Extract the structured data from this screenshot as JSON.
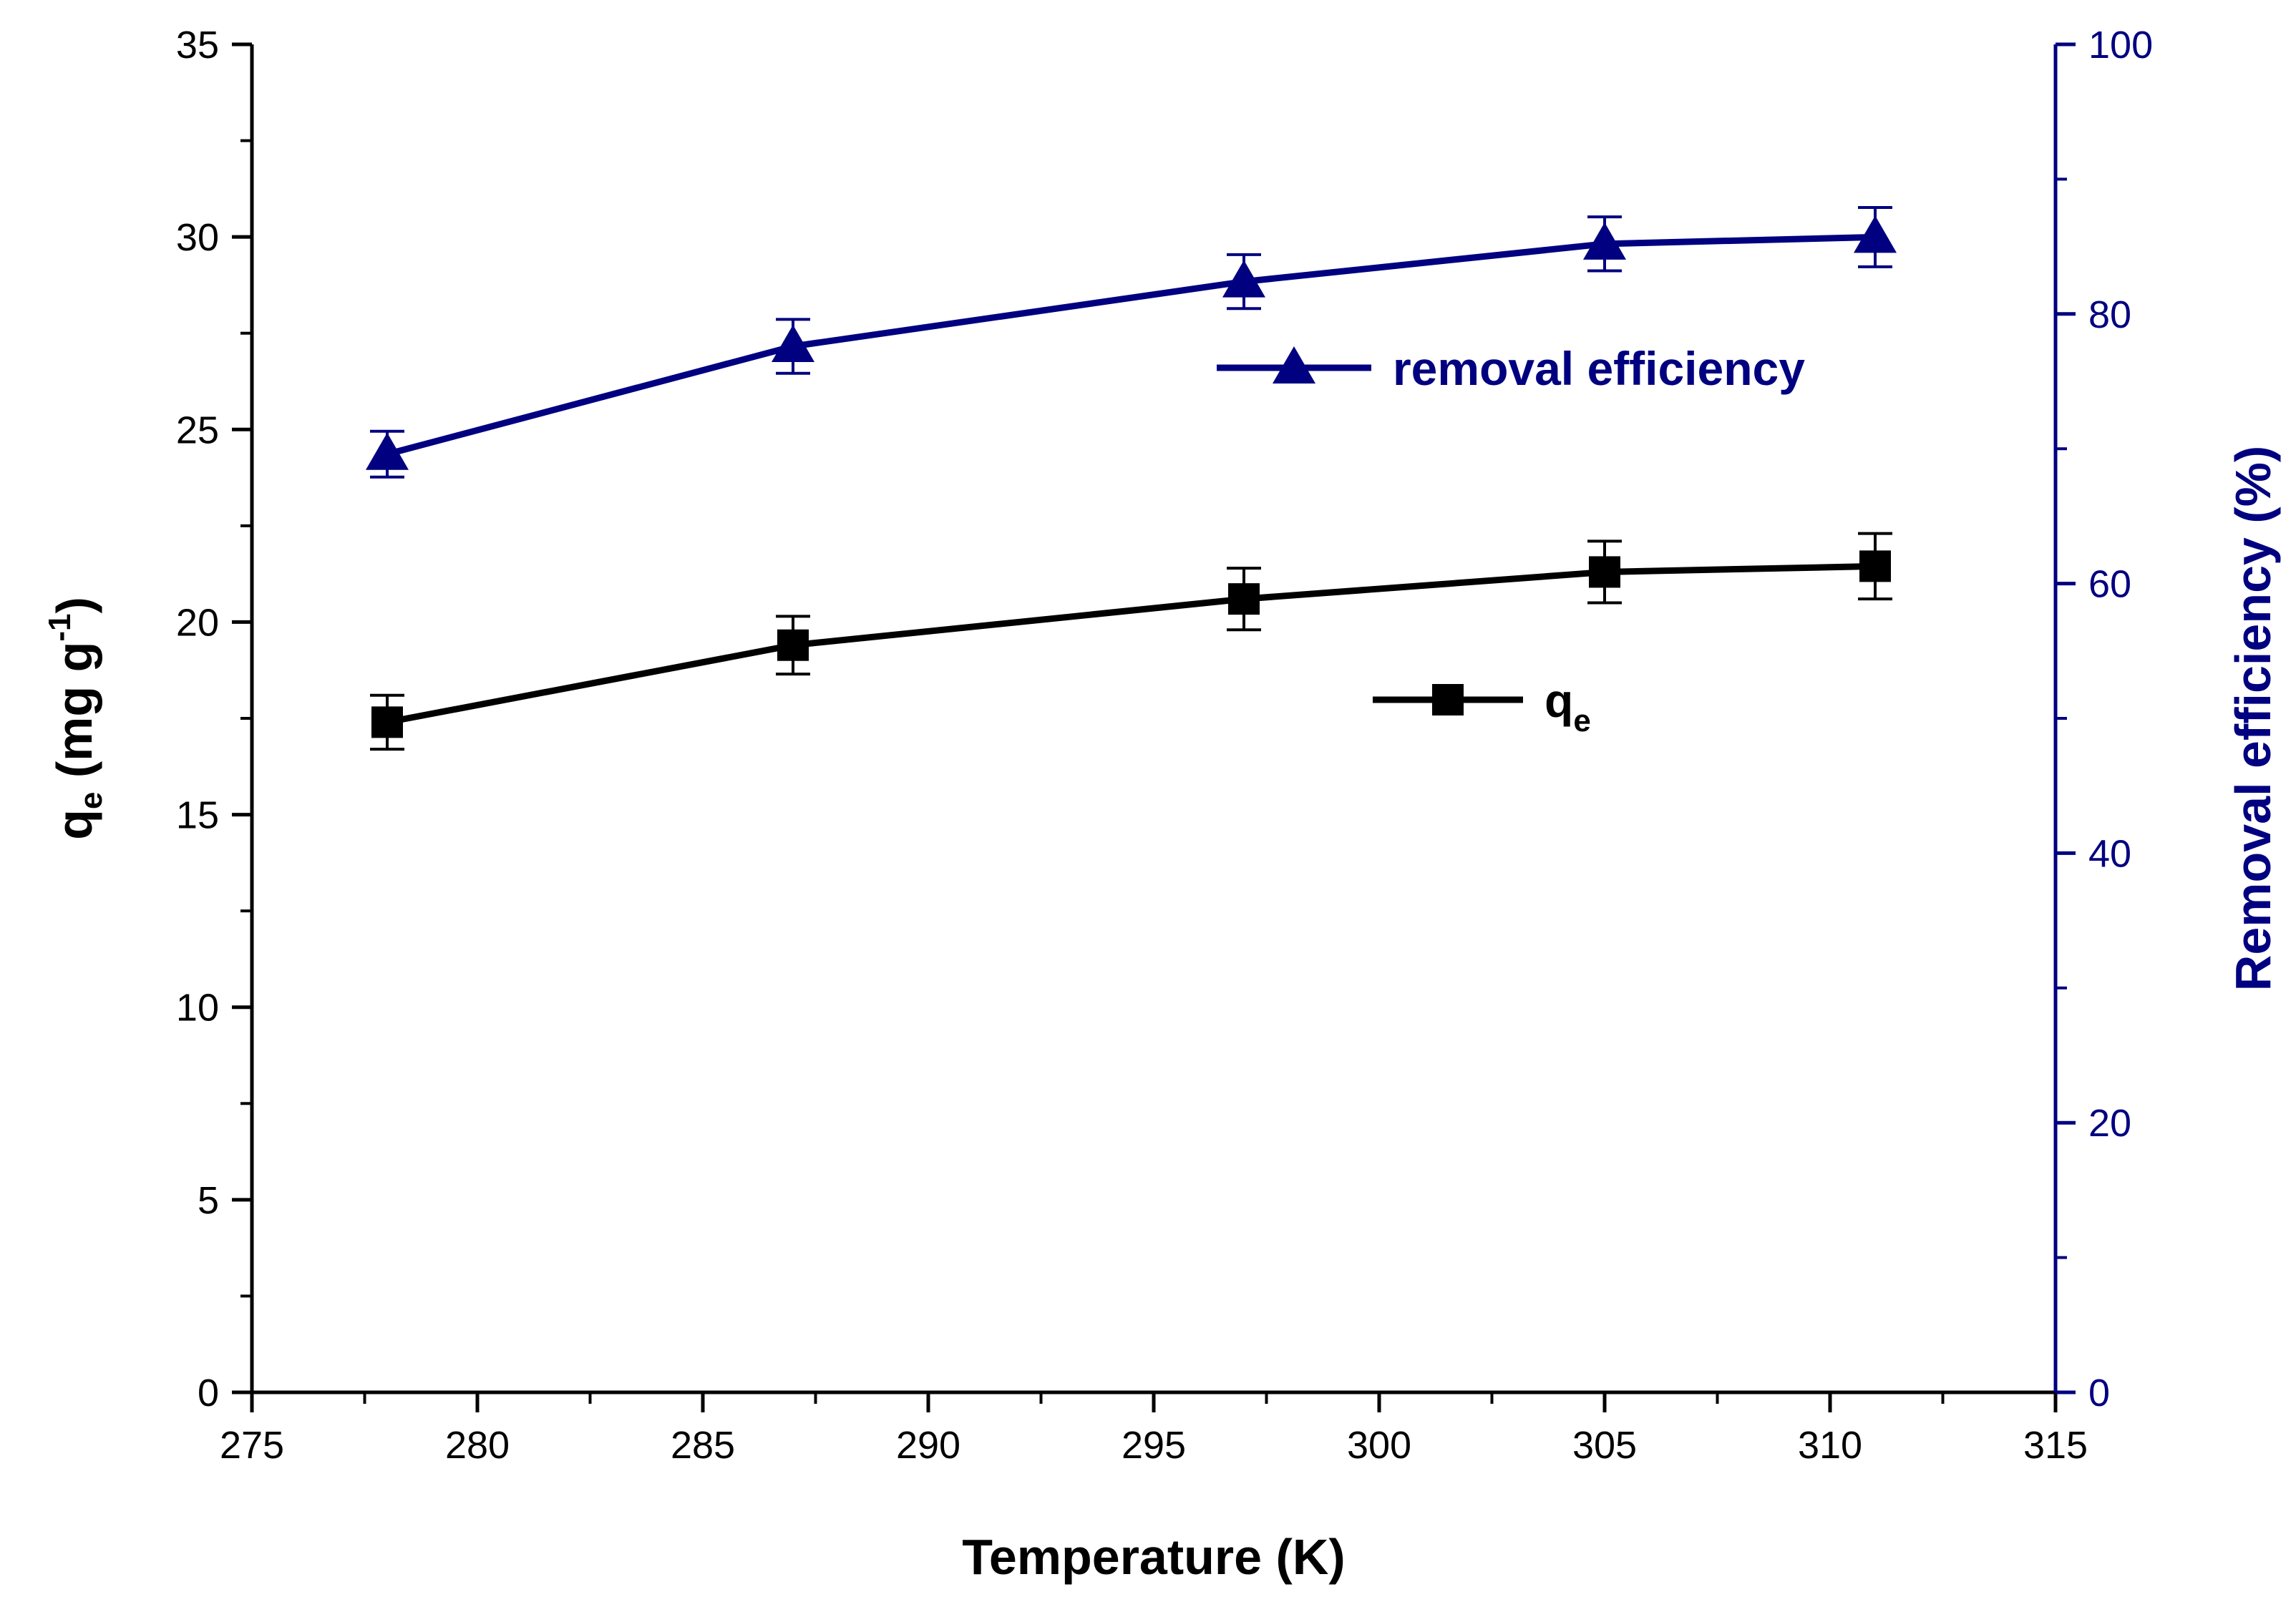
{
  "chart_data": {
    "type": "line",
    "x": [
      278,
      287,
      297,
      305,
      311
    ],
    "xlabel": "Temperature (K)",
    "xlim": [
      275,
      315
    ],
    "xticks": [
      "275",
      "280",
      "285",
      "290",
      "295",
      "300",
      "305",
      "310",
      "315"
    ],
    "ylabel_left": {
      "base": "q",
      "sub": "e",
      "unit_open": " (mg g",
      "sup": "-1",
      "unit_close": ")"
    },
    "ylim_left": [
      0,
      35
    ],
    "yticks_left": [
      "0",
      "5",
      "10",
      "15",
      "20",
      "25",
      "30",
      "35"
    ],
    "ylabel_right": "Removal efficiency (%)",
    "ylim_right": [
      0,
      100
    ],
    "yticks_right": [
      "0",
      "20",
      "40",
      "60",
      "80",
      "100"
    ],
    "grid": false,
    "series": [
      {
        "name": "q_e",
        "legend_base": "q",
        "legend_sub": "e",
        "axis": "left",
        "marker": "square",
        "color": "#000000",
        "values": [
          17.4,
          19.4,
          20.6,
          21.3,
          21.45
        ],
        "errors": [
          0.7,
          0.75,
          0.8,
          0.8,
          0.85
        ]
      },
      {
        "name": "removal efficiency",
        "legend_base": "removal efficiency",
        "legend_sub": "",
        "axis": "right",
        "marker": "triangle",
        "color": "#000080",
        "values": [
          69.6,
          77.6,
          82.4,
          85.2,
          85.7
        ],
        "errors": [
          1.7,
          2.0,
          2.0,
          2.0,
          2.2
        ]
      }
    ],
    "legend_position": "inside-right"
  }
}
